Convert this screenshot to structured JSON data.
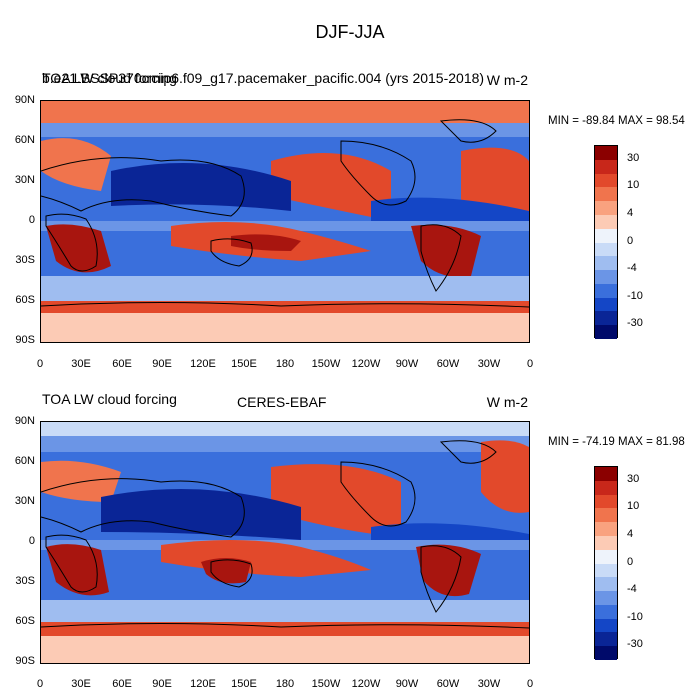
{
  "title": "DJF-JJA",
  "panels": [
    {
      "left_title_a": "TOA LW cloud forcing",
      "left_title_b": "b.e21.BSSP370cmip6.f09_g17.pacemaker_pacific.004 (yrs 2015-2018)",
      "center_title": "",
      "units": "W m-2",
      "min_max": "MIN = -89.84 MAX =  98.54"
    },
    {
      "left_title_a": "TOA LW cloud forcing",
      "left_title_b": "",
      "center_title": "CERES-EBAF",
      "units": "W m-2",
      "min_max": "MIN = -74.19 MAX =  81.98"
    }
  ],
  "lat_labels": [
    "90N",
    "60N",
    "30N",
    "0",
    "30S",
    "60S",
    "90S"
  ],
  "lon_labels": [
    "0",
    "30E",
    "60E",
    "90E",
    "120E",
    "150E",
    "180",
    "150W",
    "120W",
    "90W",
    "60W",
    "30W",
    "0"
  ],
  "colorbar": {
    "labels": [
      "30",
      "10",
      "4",
      "0",
      "-4",
      "-10",
      "-30"
    ],
    "colors": [
      "#8b0000",
      "#c8271a",
      "#e2492b",
      "#f0744d",
      "#f9a27f",
      "#fccbb5",
      "#eef3fb",
      "#c9dbf7",
      "#9fbdf0",
      "#6b95e6",
      "#3a6fdc",
      "#1446c6",
      "#0a2596",
      "#000a6a"
    ]
  },
  "map_colors": {
    "ocean_warm": "#e2492b",
    "deep_warm": "#a8150f",
    "cool": "#3a6fdc",
    "deep_cool": "#0a2596",
    "light": "#fccbb5",
    "pale_blue": "#9fbdf0"
  }
}
